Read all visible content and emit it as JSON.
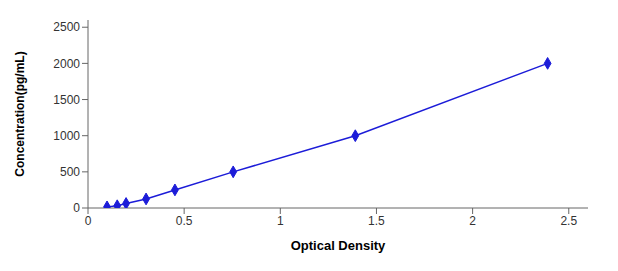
{
  "chart_data": {
    "type": "line",
    "x": [
      0.099,
      0.152,
      0.198,
      0.302,
      0.452,
      0.755,
      1.39,
      2.39
    ],
    "values": [
      15.6,
      31.2,
      62.5,
      125.0,
      250.0,
      500.0,
      1000.0,
      2000.0
    ],
    "color": "#1C1CD8",
    "marker": "diamond",
    "xlabel": "Optical Density",
    "ylabel": "Concentration(pg/mL)",
    "xlim": [
      0.0,
      2.6
    ],
    "ylim": [
      0,
      2600
    ],
    "xticks": [
      0,
      0.5,
      1,
      1.5,
      2,
      2.5
    ],
    "yticks": [
      0,
      500,
      1000,
      1500,
      2000,
      2500
    ],
    "grid": false
  }
}
